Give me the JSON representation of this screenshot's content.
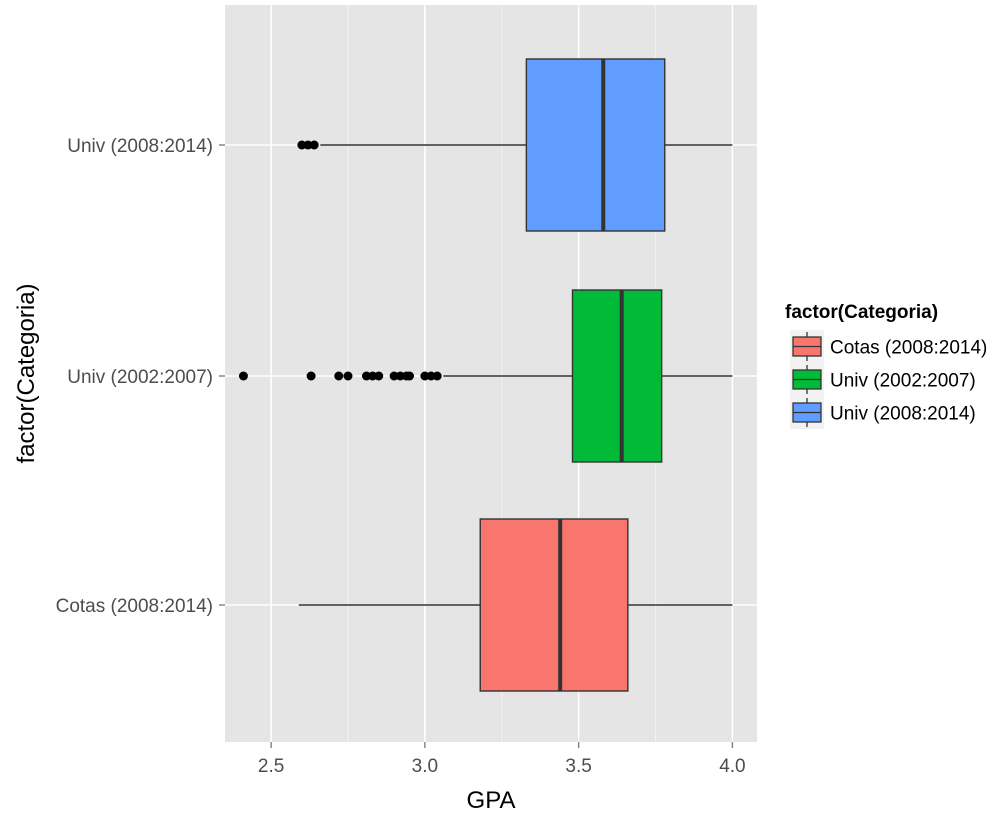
{
  "chart_data": {
    "type": "boxplot",
    "orientation": "horizontal",
    "xlabel": "GPA",
    "ylabel": "factor(Categoria)",
    "xlim": [
      2.35,
      4.08
    ],
    "xticks": [
      2.5,
      3.0,
      3.5,
      4.0
    ],
    "xtick_labels": [
      "2.5",
      "3.0",
      "3.5",
      "4.0"
    ],
    "grid": true,
    "panel_background": "#e5e5e5",
    "grid_color": "#ffffff",
    "legend": {
      "title": "factor(Categoria)",
      "position": "right",
      "entries": [
        {
          "label": "Cotas (2008:2014)",
          "color": "#f8766d"
        },
        {
          "label": "Univ (2002:2007)",
          "color": "#00ba38"
        },
        {
          "label": "Univ (2008:2014)",
          "color": "#619cff"
        }
      ]
    },
    "categories": [
      "Cotas (2008:2014)",
      "Univ (2002:2007)",
      "Univ (2008:2014)"
    ],
    "series": [
      {
        "name": "Cotas (2008:2014)",
        "color": "#f8766d",
        "min": 2.59,
        "q1": 3.18,
        "median": 3.44,
        "q3": 3.66,
        "max": 4.0,
        "outliers": []
      },
      {
        "name": "Univ (2002:2007)",
        "color": "#00ba38",
        "min": 3.06,
        "q1": 3.48,
        "median": 3.64,
        "q3": 3.77,
        "max": 4.0,
        "outliers": [
          2.41,
          2.63,
          2.72,
          2.75,
          2.81,
          2.83,
          2.85,
          2.9,
          2.92,
          2.94,
          2.95,
          3.0,
          3.02,
          3.04
        ]
      },
      {
        "name": "Univ (2008:2014)",
        "color": "#619cff",
        "min": 2.66,
        "q1": 3.33,
        "median": 3.58,
        "q3": 3.78,
        "max": 4.0,
        "outliers": [
          2.6,
          2.62,
          2.64
        ]
      }
    ]
  }
}
